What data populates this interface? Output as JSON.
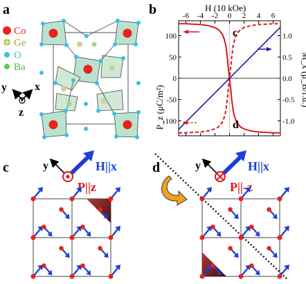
{
  "panels": {
    "a": {
      "label": "a",
      "legend": [
        {
          "text": "Co",
          "color": "#e8231c"
        },
        {
          "text": "Ge",
          "color": "#b7c542"
        },
        {
          "text": "O",
          "color": "#35c2e6"
        },
        {
          "text": "Ba",
          "color": "#55d046"
        }
      ],
      "axis_y": "y",
      "axis_x": "x",
      "axis_z": "z"
    },
    "b": {
      "label": "b",
      "top_axis_label": "H (10 kOe)",
      "left_axis_label": "P_z (μC/m²)",
      "right_axis_label": "M_x (μ_B/f.u.)",
      "inner_label_top": "c",
      "inner_label_bottom": "d"
    },
    "c": {
      "label": "c",
      "axis_y": "y",
      "field_label": "H||x",
      "pol_label": "P||z"
    },
    "d": {
      "label": "d",
      "axis_y": "y",
      "field_label": "H||x",
      "pol_label": "P||-z"
    }
  },
  "chart_data": {
    "type": "line",
    "x_label": "H (10 kOe)",
    "x_ticks": [
      -6,
      -4,
      -2,
      0,
      2,
      4,
      6
    ],
    "xlim": [
      -7,
      7
    ],
    "y_left": {
      "label": "P_z (μC/m²)",
      "ticks": [
        -100,
        -50,
        0,
        50,
        100
      ],
      "lim": [
        -135,
        135
      ]
    },
    "y_right": {
      "label": "M_x (μ_B/f.u.)",
      "ticks": [
        "-1.0",
        "-0.5",
        "0.0",
        "0.5",
        "1.0"
      ],
      "lim": [
        -1.35,
        1.35
      ]
    },
    "series": [
      {
        "axis": "left",
        "color": "#d7191c",
        "style": "solid",
        "x": [
          -7,
          -6,
          -5,
          -4,
          -3,
          -2,
          -1.5,
          -1,
          -0.7,
          -0.5,
          -0.3,
          -0.15,
          0,
          0.15,
          0.3,
          0.5,
          0.7,
          1,
          1.5,
          2,
          3,
          4,
          5,
          6,
          7
        ],
        "y": [
          128,
          128,
          127,
          126,
          124,
          119,
          114,
          104,
          91,
          76,
          48,
          22,
          0,
          -22,
          -48,
          -76,
          -91,
          -104,
          -114,
          -119,
          -124,
          -126,
          -127,
          -128,
          -128
        ]
      },
      {
        "axis": "left",
        "color": "#d7191c",
        "style": "dashed",
        "x": [
          -7,
          -6,
          -5,
          -4,
          -3,
          -2,
          -1.5,
          -1,
          -0.7,
          -0.5,
          -0.3,
          -0.15,
          0,
          0.15,
          0.3,
          0.5,
          0.7,
          1,
          1.5,
          2,
          3,
          4,
          5,
          6,
          7
        ],
        "y": [
          -128,
          -128,
          -127,
          -126,
          -124,
          -119,
          -114,
          -104,
          -91,
          -76,
          -48,
          -22,
          0,
          22,
          48,
          76,
          91,
          104,
          114,
          119,
          124,
          126,
          127,
          128,
          128
        ]
      },
      {
        "axis": "right",
        "color": "#1a1a8c",
        "style": "solid",
        "x": [
          -7,
          7
        ],
        "y": [
          -1.2,
          1.2
        ]
      }
    ]
  }
}
